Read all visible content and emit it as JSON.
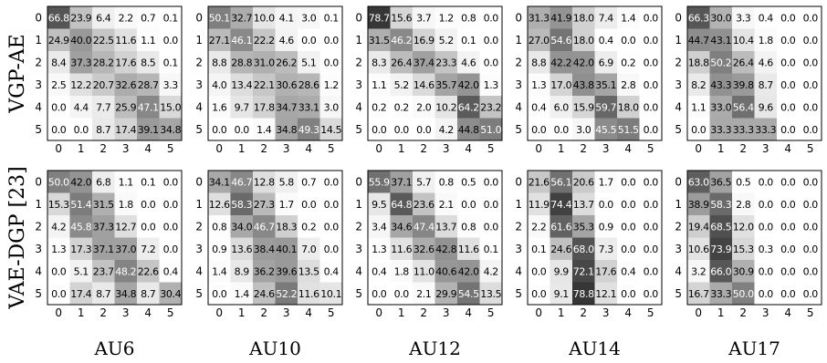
{
  "chart_data": {
    "type": "heatmap",
    "rows": [
      "VGP-AE",
      "VAE-DGP [23]"
    ],
    "columns": [
      "AU6",
      "AU10",
      "AU12",
      "AU14",
      "AU17"
    ],
    "tick_labels": [
      "0",
      "1",
      "2",
      "3",
      "4",
      "5"
    ],
    "value_range": [
      0,
      100
    ],
    "colormap": "white-to-black",
    "panels": [
      [
        [
          [
            66.8,
            23.9,
            6.4,
            2.2,
            0.7,
            0.1
          ],
          [
            24.9,
            40.0,
            22.5,
            11.6,
            1.1,
            0.0
          ],
          [
            8.4,
            37.3,
            28.2,
            17.6,
            8.5,
            0.1
          ],
          [
            2.5,
            12.2,
            20.7,
            32.6,
            28.7,
            3.3
          ],
          [
            0.0,
            4.4,
            7.7,
            25.9,
            47.1,
            15.0
          ],
          [
            0.0,
            0.0,
            8.7,
            17.4,
            39.1,
            34.8
          ]
        ],
        [
          [
            50.1,
            32.7,
            10.0,
            4.1,
            3.0,
            0.1
          ],
          [
            27.1,
            46.1,
            22.2,
            4.6,
            0.0,
            0.0
          ],
          [
            8.8,
            28.8,
            31.0,
            26.2,
            5.1,
            0.0
          ],
          [
            4.0,
            13.4,
            22.1,
            30.6,
            28.6,
            1.2
          ],
          [
            1.6,
            9.7,
            17.8,
            34.7,
            33.1,
            3.0
          ],
          [
            0.0,
            0.0,
            1.4,
            34.8,
            49.3,
            14.5
          ]
        ],
        [
          [
            78.7,
            15.6,
            3.7,
            1.2,
            0.8,
            0.0
          ],
          [
            31.5,
            46.2,
            16.9,
            5.2,
            0.1,
            0.0
          ],
          [
            8.3,
            26.4,
            37.4,
            23.3,
            4.6,
            0.0
          ],
          [
            1.1,
            5.2,
            14.6,
            35.7,
            42.0,
            1.3
          ],
          [
            0.2,
            0.2,
            2.0,
            10.2,
            64.2,
            23.2
          ],
          [
            0.0,
            0.0,
            0.0,
            4.2,
            44.8,
            51.0
          ]
        ],
        [
          [
            31.3,
            41.9,
            18.0,
            7.4,
            1.4,
            0.0
          ],
          [
            27.0,
            54.6,
            18.0,
            0.4,
            0.0,
            0.0
          ],
          [
            8.8,
            42.2,
            42.0,
            6.9,
            0.2,
            0.0
          ],
          [
            1.3,
            17.0,
            43.8,
            35.1,
            2.8,
            0.0
          ],
          [
            0.4,
            6.0,
            15.9,
            59.7,
            18.0,
            0.0
          ],
          [
            0.0,
            0.0,
            3.0,
            45.5,
            51.5,
            0.0
          ]
        ],
        [
          [
            66.3,
            30.0,
            3.3,
            0.4,
            0.0,
            0.0
          ],
          [
            44.7,
            43.1,
            10.4,
            1.8,
            0.0,
            0.0
          ],
          [
            18.8,
            50.2,
            26.4,
            4.6,
            0.0,
            0.0
          ],
          [
            8.2,
            43.3,
            39.8,
            8.7,
            0.0,
            0.0
          ],
          [
            1.1,
            33.0,
            56.4,
            9.6,
            0.0,
            0.0
          ],
          [
            0.0,
            33.3,
            33.3,
            33.3,
            0.0,
            0.0
          ]
        ]
      ],
      [
        [
          [
            50.0,
            42.0,
            6.8,
            1.1,
            0.1,
            0.0
          ],
          [
            15.3,
            51.4,
            31.5,
            1.8,
            0.0,
            0.0
          ],
          [
            4.2,
            45.8,
            37.3,
            12.7,
            0.0,
            0.0
          ],
          [
            1.3,
            17.3,
            37.1,
            37.0,
            7.2,
            0.0
          ],
          [
            0.0,
            5.1,
            23.7,
            48.2,
            22.6,
            0.4
          ],
          [
            0.0,
            17.4,
            8.7,
            34.8,
            8.7,
            30.4
          ]
        ],
        [
          [
            34.1,
            46.7,
            12.8,
            5.8,
            0.7,
            0.0
          ],
          [
            12.6,
            58.3,
            27.3,
            1.7,
            0.0,
            0.0
          ],
          [
            0.8,
            34.0,
            46.7,
            18.3,
            0.2,
            0.0
          ],
          [
            0.9,
            13.6,
            38.4,
            40.1,
            7.0,
            0.0
          ],
          [
            1.4,
            8.9,
            36.2,
            39.6,
            13.5,
            0.4
          ],
          [
            0.0,
            1.4,
            24.6,
            52.2,
            11.6,
            10.1
          ]
        ],
        [
          [
            55.9,
            37.1,
            5.7,
            0.8,
            0.5,
            0.0
          ],
          [
            9.5,
            64.8,
            23.6,
            2.1,
            0.0,
            0.0
          ],
          [
            3.4,
            34.6,
            47.4,
            13.7,
            0.8,
            0.0
          ],
          [
            1.3,
            11.6,
            32.6,
            42.8,
            11.6,
            0.1
          ],
          [
            0.4,
            1.8,
            11.0,
            40.6,
            42.0,
            4.2
          ],
          [
            0.0,
            0.0,
            2.1,
            29.9,
            54.5,
            13.5
          ]
        ],
        [
          [
            21.6,
            56.1,
            20.6,
            1.7,
            0.0,
            0.0
          ],
          [
            11.9,
            74.4,
            13.7,
            0.0,
            0.0,
            0.0
          ],
          [
            2.2,
            61.6,
            35.3,
            0.9,
            0.0,
            0.0
          ],
          [
            0.1,
            24.6,
            68.0,
            7.3,
            0.0,
            0.0
          ],
          [
            0.0,
            9.9,
            72.1,
            17.6,
            0.4,
            0.0
          ],
          [
            0.0,
            9.1,
            78.8,
            12.1,
            0.0,
            0.0
          ]
        ],
        [
          [
            63.0,
            36.5,
            0.5,
            0.0,
            0.0,
            0.0
          ],
          [
            38.9,
            58.3,
            2.8,
            0.0,
            0.0,
            0.0
          ],
          [
            19.4,
            68.5,
            12.0,
            0.0,
            0.0,
            0.0
          ],
          [
            10.6,
            73.9,
            15.3,
            0.3,
            0.0,
            0.0
          ],
          [
            3.2,
            66.0,
            30.9,
            0.0,
            0.0,
            0.0
          ],
          [
            16.7,
            33.3,
            50.0,
            0.0,
            0.0,
            0.0
          ]
        ]
      ]
    ]
  }
}
